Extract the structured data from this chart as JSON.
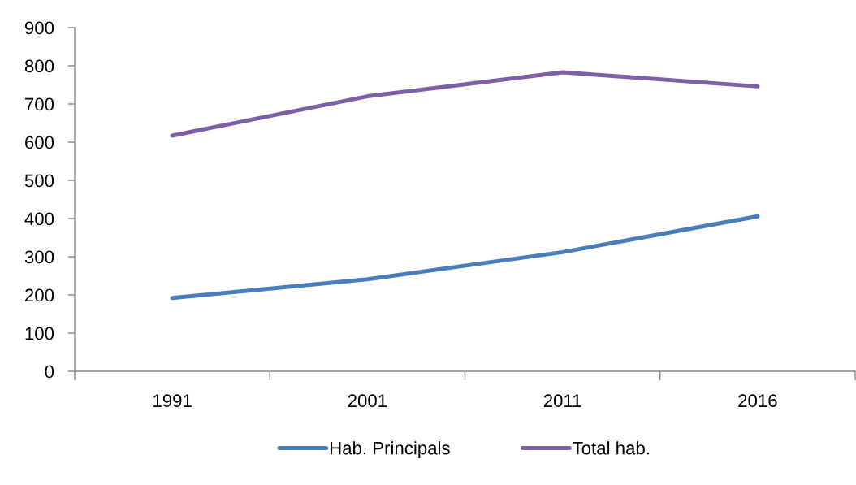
{
  "chart_data": {
    "type": "line",
    "categories": [
      "1991",
      "2001",
      "2011",
      "2016"
    ],
    "series": [
      {
        "name": "Hab. Principals",
        "color": "#4a7ebb",
        "values": [
          192,
          241,
          312,
          406
        ]
      },
      {
        "name": "Total hab.",
        "color": "#7f60a6",
        "values": [
          617,
          720,
          783,
          746
        ]
      }
    ],
    "ylim": [
      0,
      900
    ],
    "yticks": [
      0,
      100,
      200,
      300,
      400,
      500,
      600,
      700,
      800,
      900
    ],
    "grid": false,
    "legend": "bottom",
    "marker": "none",
    "line_style": "solid"
  }
}
